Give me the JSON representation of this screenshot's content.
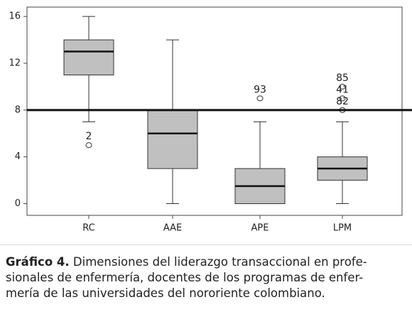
{
  "chart_data": {
    "type": "box",
    "categories": [
      "RC",
      "AAE",
      "APE",
      "LPM"
    ],
    "boxes": [
      {
        "min": 7,
        "q1": 11,
        "median": 13,
        "q3": 14,
        "max": 16,
        "outliers": [
          {
            "value": 5,
            "label": "2"
          }
        ]
      },
      {
        "min": 0,
        "q1": 3,
        "median": 6,
        "q3": 8,
        "max": 14,
        "outliers": []
      },
      {
        "min": 0,
        "q1": 0,
        "median": 1.5,
        "q3": 3,
        "max": 7,
        "outliers": [
          {
            "value": 9,
            "label": "93"
          }
        ]
      },
      {
        "min": 0,
        "q1": 2,
        "median": 3,
        "q3": 4,
        "max": 7,
        "outliers": [
          {
            "value": 8,
            "label": "82"
          },
          {
            "value": 9,
            "label": "41"
          },
          {
            "value": 10,
            "label": "85"
          }
        ]
      }
    ],
    "color": "#c0c0c0",
    "reference_line": 8,
    "ylim": [
      -1,
      16.8
    ],
    "yticks": [
      0,
      4,
      8,
      12,
      16
    ]
  },
  "caption": {
    "label": "Gráfico 4.",
    "lines": [
      "Dimensiones del liderazgo transaccional en profe-",
      "sionales de enfermería, docentes de los programas de enfer-",
      "mería de las universidades del nororiente colombiano."
    ]
  }
}
